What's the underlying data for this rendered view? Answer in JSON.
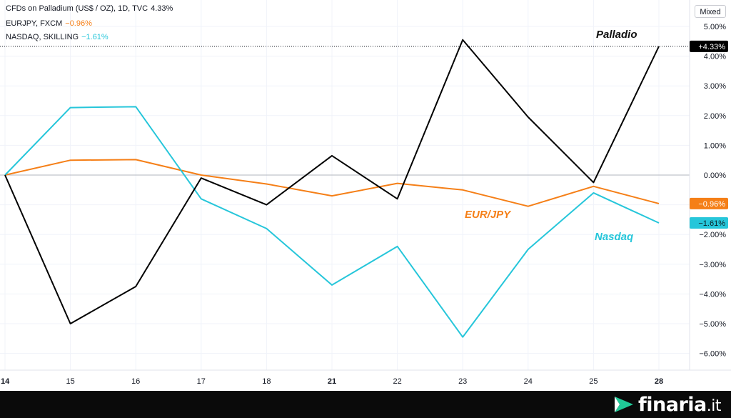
{
  "legend": [
    {
      "label": "CFDs on Palladium (US$ / OZ), 1D, TVC",
      "value": "4.33%",
      "color": "#131722"
    },
    {
      "label": "EURJPY, FXCM",
      "value": "−0.96%",
      "color": "#f57f17"
    },
    {
      "label": "NASDAQ, SKILLING",
      "value": "−1.61%",
      "color": "#26c6da"
    }
  ],
  "scale_mode": "Mixed",
  "brand": {
    "name": "finaria",
    "tld": ".it",
    "icon": "arrow-logo-icon"
  },
  "chart_data": {
    "type": "line",
    "x": [
      "14",
      "15",
      "16",
      "17",
      "18",
      "21",
      "22",
      "23",
      "24",
      "25",
      "28"
    ],
    "x_bold": [
      "14",
      "21",
      "28"
    ],
    "ylim": [
      -6.5,
      5.3
    ],
    "yticks": [
      5,
      4,
      3,
      2,
      1,
      0,
      -1,
      -2,
      -3,
      -4,
      -5,
      -6
    ],
    "ytick_labels": [
      "5.00%",
      "4.00%",
      "3.00%",
      "2.00%",
      "1.00%",
      "0.00%",
      "",
      "−2.00%",
      "−3.00%",
      "−4.00%",
      "−5.00%",
      "−6.00%"
    ],
    "grid": true,
    "series": [
      {
        "name": "Palladio",
        "color": "#000000",
        "values": [
          0,
          -5.0,
          -3.75,
          -0.1,
          -1.0,
          0.65,
          -0.8,
          4.55,
          1.95,
          -0.25,
          4.33
        ],
        "end_label": "+4.33%",
        "label_color": "#111111"
      },
      {
        "name": "EUR/JPY",
        "color": "#f57f17",
        "values": [
          0,
          0.5,
          0.52,
          0,
          -0.3,
          -0.7,
          -0.28,
          -0.5,
          -1.05,
          -0.38,
          -0.96
        ],
        "end_label": "−0.96%",
        "label_color": "#f57f17"
      },
      {
        "name": "Nasdaq",
        "color": "#26c6da",
        "values": [
          0,
          2.27,
          2.3,
          -0.8,
          -1.8,
          -3.7,
          -2.4,
          -5.45,
          -2.5,
          -0.6,
          -1.61
        ],
        "end_label": "−1.61%",
        "label_color": "#26c6da"
      }
    ]
  }
}
